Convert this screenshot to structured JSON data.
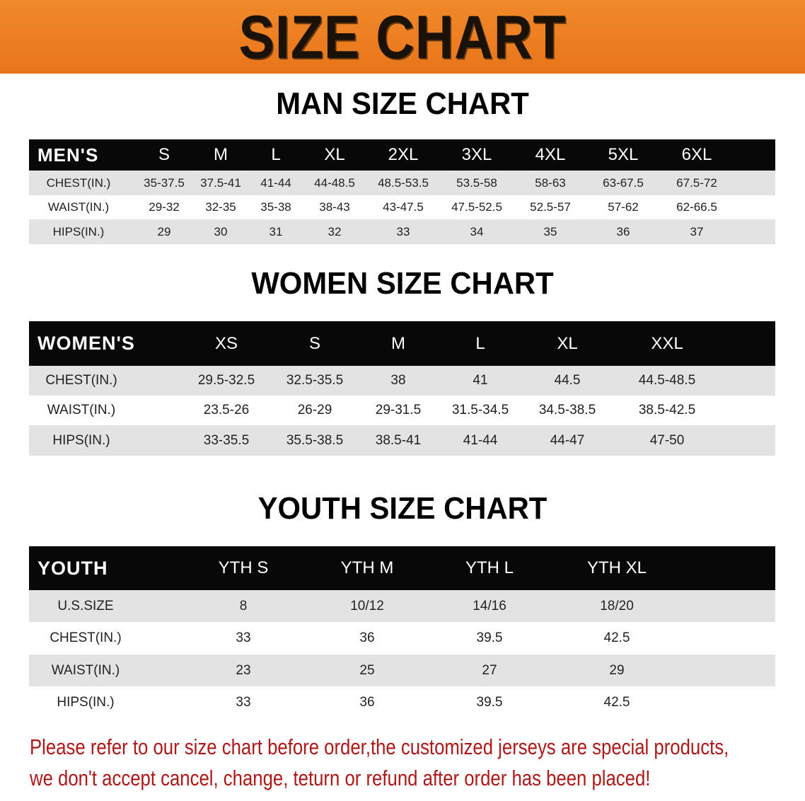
{
  "banner": {
    "title": "SIZE CHART",
    "color": "#ec7a1c"
  },
  "men": {
    "title": "MAN SIZE CHART",
    "header": "MEN'S",
    "sizes": [
      "S",
      "M",
      "L",
      "XL",
      "2XL",
      "3XL",
      "4XL",
      "5XL",
      "6XL"
    ],
    "rows": [
      {
        "label": "CHEST(IN.)",
        "values": [
          "35-37.5",
          "37.5-41",
          "41-44",
          "44-48.5",
          "48.5-53.5",
          "53.5-58",
          "58-63",
          "63-67.5",
          "67.5-72"
        ]
      },
      {
        "label": "WAIST(IN.)",
        "values": [
          "29-32",
          "32-35",
          "35-38",
          "38-43",
          "43-47.5",
          "47.5-52.5",
          "52.5-57",
          "57-62",
          "62-66.5"
        ]
      },
      {
        "label": "HIPS(IN.)",
        "values": [
          "29",
          "30",
          "31",
          "32",
          "33",
          "34",
          "35",
          "36",
          "37"
        ]
      }
    ]
  },
  "women": {
    "title": "WOMEN SIZE CHART",
    "header": "WOMEN'S",
    "sizes": [
      "XS",
      "S",
      "M",
      "L",
      "XL",
      "XXL"
    ],
    "rows": [
      {
        "label": "CHEST(IN.)",
        "values": [
          "29.5-32.5",
          "32.5-35.5",
          "38",
          "41",
          "44.5",
          "44.5-48.5"
        ]
      },
      {
        "label": "WAIST(IN.)",
        "values": [
          "23.5-26",
          "26-29",
          "29-31.5",
          "31.5-34.5",
          "34.5-38.5",
          "38.5-42.5"
        ]
      },
      {
        "label": "HIPS(IN.)",
        "values": [
          "33-35.5",
          "35.5-38.5",
          "38.5-41",
          "41-44",
          "44-47",
          "47-50"
        ]
      }
    ]
  },
  "youth": {
    "title": "YOUTH SIZE CHART",
    "header": "YOUTH",
    "sizes": [
      "YTH S",
      "YTH M",
      "YTH L",
      "YTH XL"
    ],
    "rows": [
      {
        "label": "U.S.SIZE",
        "values": [
          "8",
          "10/12",
          "14/16",
          "18/20"
        ]
      },
      {
        "label": "CHEST(IN.)",
        "values": [
          "33",
          "36",
          "39.5",
          "42.5"
        ]
      },
      {
        "label": "WAIST(IN.)",
        "values": [
          "23",
          "25",
          "27",
          "29"
        ]
      },
      {
        "label": "HIPS(IN.)",
        "values": [
          "33",
          "36",
          "39.5",
          "42.5"
        ]
      }
    ]
  },
  "notice": {
    "line1": "Please refer to our size chart before order,the customized jerseys are special products,",
    "line2": "we don't accept cancel, change, teturn or refund after order has been placed!",
    "color": "#b01818"
  }
}
